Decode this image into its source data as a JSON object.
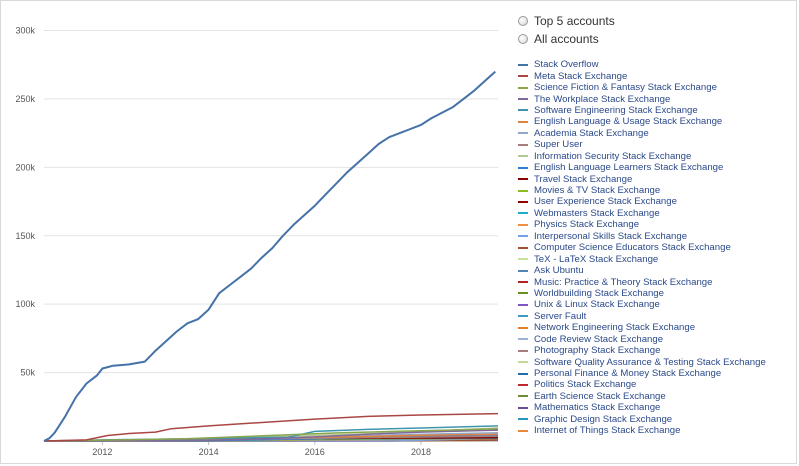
{
  "options": [
    {
      "label": "Top 5 accounts"
    },
    {
      "label": "All accounts"
    }
  ],
  "chart_data": {
    "type": "line",
    "y_ticks": [
      50000,
      100000,
      150000,
      200000,
      250000,
      300000
    ],
    "y_tick_labels": [
      "50k",
      "100k",
      "150k",
      "200k",
      "250k",
      "300k"
    ],
    "x_ticks": [
      2012,
      2014,
      2016,
      2018
    ],
    "xlim": [
      2010.9,
      2019.45
    ],
    "ylim": [
      0,
      315000
    ],
    "grid": true,
    "legend_position": "right",
    "series": [
      {
        "name": "Stack Overflow",
        "color": "#4572A7",
        "x": [
          2010.9,
          2011.0,
          2011.1,
          2011.3,
          2011.5,
          2011.7,
          2011.9,
          2012.0,
          2012.1,
          2012.2,
          2012.5,
          2012.8,
          2013.0,
          2013.2,
          2013.4,
          2013.6,
          2013.8,
          2014.0,
          2014.2,
          2014.4,
          2014.6,
          2014.8,
          2015.0,
          2015.2,
          2015.4,
          2015.6,
          2015.8,
          2016.0,
          2016.2,
          2016.4,
          2016.6,
          2016.8,
          2017.0,
          2017.2,
          2017.4,
          2017.6,
          2017.8,
          2018.0,
          2018.2,
          2018.4,
          2018.6,
          2018.8,
          2019.0,
          2019.2,
          2019.4
        ],
        "y": [
          0,
          2000,
          6000,
          18000,
          32000,
          42000,
          48000,
          53000,
          54000,
          55000,
          56000,
          58000,
          66000,
          73000,
          80000,
          86000,
          89000,
          96000,
          108000,
          114000,
          120000,
          126000,
          134000,
          141000,
          150000,
          158000,
          165000,
          172000,
          180000,
          188000,
          196000,
          203000,
          210000,
          217000,
          222000,
          225000,
          228000,
          231000,
          236000,
          240000,
          244000,
          250000,
          256000,
          263000,
          270000
        ]
      },
      {
        "name": "Meta Stack Exchange",
        "color": "#AA4643",
        "x": [
          2010.9,
          2011.7,
          2012.1,
          2012.5,
          2013.0,
          2013.3,
          2014.0,
          2015.0,
          2016.0,
          2017.0,
          2018.0,
          2019.45
        ],
        "y": [
          0,
          800,
          4000,
          5500,
          6500,
          9000,
          11000,
          13500,
          16000,
          18000,
          19000,
          20000
        ]
      },
      {
        "name": "Science Fiction & Fantasy Stack Exchange",
        "color": "#89A54E",
        "x": [
          2010.9,
          2013.5,
          2014.5,
          2015.5,
          2016.5,
          2017.5,
          2018.5,
          2019.45
        ],
        "y": [
          0,
          1500,
          3000,
          4500,
          6000,
          7000,
          8000,
          9000
        ]
      },
      {
        "name": "The Workplace Stack Exchange",
        "color": "#80699B",
        "x": [
          2010.9,
          2014.0,
          2015.0,
          2016.0,
          2017.0,
          2018.0,
          2019.45
        ],
        "y": [
          0,
          500,
          1500,
          3000,
          5000,
          6500,
          8000
        ]
      },
      {
        "name": "Software Engineering Stack Exchange",
        "color": "#3D96AE",
        "x": [
          2010.9,
          2012.0,
          2014.0,
          2015.5,
          2016.0,
          2017.0,
          2018.0,
          2019.45
        ],
        "y": [
          0,
          800,
          1800,
          2800,
          7000,
          8500,
          9500,
          11000
        ]
      },
      {
        "name": "English Language & Usage Stack Exchange",
        "color": "#DB843D",
        "x": [
          2010.9,
          2013.0,
          2015.0,
          2016.5,
          2018.0,
          2019.45
        ],
        "y": [
          0,
          800,
          2000,
          3000,
          4200,
          5000
        ]
      },
      {
        "name": "Academia Stack Exchange",
        "color": "#92A8CD",
        "x": [
          2010.9,
          2014.0,
          2016.0,
          2017.5,
          2019.45
        ],
        "y": [
          0,
          800,
          2500,
          4500,
          6000
        ]
      },
      {
        "name": "Super User",
        "color": "#A47D7C",
        "x": [
          2010.9,
          2013.0,
          2015.0,
          2017.0,
          2019.45
        ],
        "y": [
          0,
          600,
          1500,
          2500,
          3500
        ]
      },
      {
        "name": "Information Security Stack Exchange",
        "color": "#B5CA92",
        "x": [
          2010.9,
          2013.5,
          2015.5,
          2017.5,
          2019.45
        ],
        "y": [
          0,
          1000,
          3500,
          6000,
          9500
        ]
      },
      {
        "name": "English Language Learners Stack Exchange",
        "color": "#2F7ED8",
        "x": [
          2010.9,
          2014.0,
          2016.0,
          2018.0,
          2019.45
        ],
        "y": [
          0,
          300,
          1500,
          3500,
          4500
        ]
      },
      {
        "name": "Travel Stack Exchange",
        "color": "#8B0000",
        "x": [
          2010.9,
          2013.0,
          2015.0,
          2017.0,
          2019.45
        ],
        "y": [
          0,
          500,
          1200,
          2000,
          2800
        ]
      },
      {
        "name": "Movies & TV Stack Exchange",
        "color": "#8BBC21",
        "x": [
          2010.9,
          2014.0,
          2016.0,
          2018.0,
          2019.45
        ],
        "y": [
          0,
          300,
          1200,
          2200,
          3000
        ]
      },
      {
        "name": "User Experience Stack Exchange",
        "color": "#910000",
        "x": [
          2010.9,
          2013.0,
          2015.0,
          2017.0,
          2019.45
        ],
        "y": [
          0,
          400,
          1000,
          1800,
          2400
        ]
      },
      {
        "name": "Webmasters Stack Exchange",
        "color": "#1AADCE",
        "x": [
          2010.9,
          2013.0,
          2015.0,
          2017.0,
          2019.45
        ],
        "y": [
          0,
          300,
          800,
          1400,
          2000
        ]
      },
      {
        "name": "Physics Stack Exchange",
        "color": "#F28F43",
        "x": [
          2010.9,
          2014.0,
          2016.0,
          2018.0,
          2019.45
        ],
        "y": [
          0,
          200,
          700,
          1300,
          1800
        ]
      },
      {
        "name": "Interpersonal Skills Stack Exchange",
        "color": "#77A1E5",
        "x": [
          2010.9,
          2017.5,
          2018.0,
          2019.0,
          2019.45
        ],
        "y": [
          0,
          0,
          500,
          1500,
          2000
        ]
      },
      {
        "name": "Computer Science Educators Stack Exchange",
        "color": "#A0522D",
        "x": [
          2010.9,
          2017.3,
          2018.0,
          2019.45
        ],
        "y": [
          0,
          0,
          400,
          900
        ]
      },
      {
        "name": "TeX - LaTeX Stack Exchange",
        "color": "#C6E09F",
        "x": [
          2010.9,
          2013.0,
          2015.0,
          2017.0,
          2019.45
        ],
        "y": [
          0,
          200,
          500,
          800,
          1100
        ]
      },
      {
        "name": "Ask Ubuntu",
        "color": "#5083B5",
        "x": [
          2010.9,
          2012.0,
          2014.0,
          2016.0,
          2019.45
        ],
        "y": [
          0,
          300,
          600,
          900,
          1300
        ]
      },
      {
        "name": "Music: Practice & Theory Stack Exchange",
        "color": "#B22222",
        "x": [
          2010.9,
          2014.0,
          2016.0,
          2019.45
        ],
        "y": [
          0,
          150,
          400,
          800
        ]
      },
      {
        "name": "Worldbuilding Stack Exchange",
        "color": "#6B8E23",
        "x": [
          2010.9,
          2015.0,
          2016.5,
          2019.45
        ],
        "y": [
          0,
          0,
          500,
          1200
        ]
      },
      {
        "name": "Unix & Linux Stack Exchange",
        "color": "#7E57C2",
        "x": [
          2010.9,
          2013.0,
          2016.0,
          2019.45
        ],
        "y": [
          0,
          150,
          400,
          700
        ]
      },
      {
        "name": "Server Fault",
        "color": "#3A9CC2",
        "x": [
          2010.9,
          2012.0,
          2015.0,
          2019.45
        ],
        "y": [
          0,
          200,
          400,
          700
        ]
      },
      {
        "name": "Network Engineering Stack Exchange",
        "color": "#E67E22",
        "x": [
          2010.9,
          2014.0,
          2016.0,
          2019.45
        ],
        "y": [
          0,
          100,
          300,
          600
        ]
      },
      {
        "name": "Code Review Stack Exchange",
        "color": "#9DB2D9",
        "x": [
          2010.9,
          2013.0,
          2016.0,
          2019.45
        ],
        "y": [
          0,
          100,
          300,
          600
        ]
      },
      {
        "name": "Photography Stack Exchange",
        "color": "#A47D7C",
        "x": [
          2010.9,
          2013.0,
          2016.0,
          2019.45
        ],
        "y": [
          0,
          100,
          250,
          450
        ]
      },
      {
        "name": "Software Quality Assurance & Testing Stack Exchange",
        "color": "#C5D89A",
        "x": [
          2010.9,
          2014.0,
          2016.0,
          2019.45
        ],
        "y": [
          0,
          80,
          200,
          400
        ]
      },
      {
        "name": "Personal Finance & Money Stack Exchange",
        "color": "#1F6FA8",
        "x": [
          2010.9,
          2013.0,
          2016.0,
          2019.45
        ],
        "y": [
          0,
          100,
          250,
          450
        ]
      },
      {
        "name": "Politics Stack Exchange",
        "color": "#C0282C",
        "x": [
          2010.9,
          2015.5,
          2017.0,
          2019.45
        ],
        "y": [
          0,
          0,
          200,
          500
        ]
      },
      {
        "name": "Earth Science Stack Exchange",
        "color": "#6E8B3D",
        "x": [
          2010.9,
          2015.5,
          2017.0,
          2019.45
        ],
        "y": [
          0,
          0,
          100,
          250
        ]
      },
      {
        "name": "Mathematics Stack Exchange",
        "color": "#6A4C9C",
        "x": [
          2010.9,
          2013.0,
          2016.0,
          2019.45
        ],
        "y": [
          0,
          100,
          200,
          350
        ]
      },
      {
        "name": "Graphic Design Stack Exchange",
        "color": "#2596BE",
        "x": [
          2010.9,
          2013.0,
          2016.0,
          2019.45
        ],
        "y": [
          0,
          80,
          180,
          300
        ]
      },
      {
        "name": "Internet of Things Stack Exchange",
        "color": "#E8883A",
        "x": [
          2010.9,
          2017.0,
          2018.0,
          2019.45
        ],
        "y": [
          0,
          0,
          80,
          150
        ]
      }
    ]
  }
}
